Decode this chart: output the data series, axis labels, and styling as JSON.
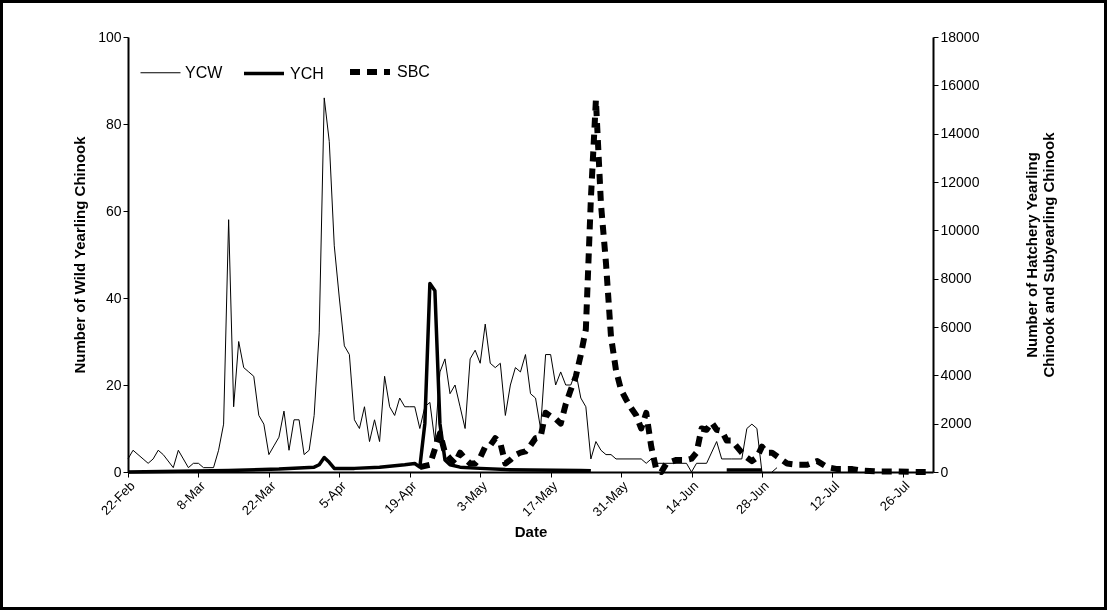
{
  "chart_data": {
    "type": "line",
    "xlabel": "Date",
    "ylabel": "Number of Wild Yearling Chinook",
    "y2label": "Number of Hatchery Yearling Chinook and Subyearling Chinook",
    "xlim": [
      "--02-22",
      "--08-01"
    ],
    "xticks": [
      {
        "value": "--02-22",
        "label": "22-Feb"
      },
      {
        "value": "--03-08",
        "label": "8-Mar"
      },
      {
        "value": "--03-22",
        "label": "22-Mar"
      },
      {
        "value": "--04-05",
        "label": "5-Apr"
      },
      {
        "value": "--04-19",
        "label": "19-Apr"
      },
      {
        "value": "--05-03",
        "label": "3-May"
      },
      {
        "value": "--05-17",
        "label": "17-May"
      },
      {
        "value": "--05-31",
        "label": "31-May"
      },
      {
        "value": "--06-14",
        "label": "14-Jun"
      },
      {
        "value": "--06-28",
        "label": "28-Jun"
      },
      {
        "value": "--07-12",
        "label": "12-Jul"
      },
      {
        "value": "--07-26",
        "label": "26-Jul"
      }
    ],
    "ylim": [
      0,
      100
    ],
    "yticks": [
      0,
      20,
      40,
      60,
      80,
      100
    ],
    "y2lim": [
      0,
      18000
    ],
    "y2ticks": [
      0,
      2000,
      4000,
      6000,
      8000,
      10000,
      12000,
      14000,
      16000,
      18000
    ],
    "legend": "top left",
    "grid": false,
    "marker": "none",
    "series": [
      {
        "name": "YCW",
        "color": "#000000",
        "line_style": "solid",
        "x": [
          "--02-22",
          "--02-23",
          "--02-25",
          "--02-26",
          "--02-27",
          "--02-28",
          "--03-01",
          "--03-03",
          "--03-04",
          "--03-05",
          "--03-06",
          "--03-07",
          "--03-08",
          "--03-09",
          "--03-11",
          "--03-12",
          "--03-13",
          "--03-14",
          "--03-15",
          "--03-16",
          "--03-17",
          "--03-18",
          "--03-19",
          "--03-20",
          "--03-21",
          "--03-22",
          "--03-23",
          "--03-24",
          "--03-25",
          "--03-26",
          "--03-27",
          "--03-28",
          "--03-29",
          "--03-30",
          "--03-31",
          "--04-01",
          "--04-02",
          "--04-03",
          "--04-04",
          "--04-05",
          "--04-06",
          "--04-07",
          "--04-08",
          "--04-09",
          "--04-10",
          "--04-11",
          "--04-12",
          "--04-13",
          "--04-14",
          "--04-15",
          "--04-16",
          "--04-17",
          "--04-18",
          "--04-19",
          "--04-20",
          "--04-21",
          "--04-22",
          "--04-23",
          "--04-24",
          "--04-25",
          "--04-26",
          "--04-27",
          "--04-28",
          "--04-29",
          "--04-30",
          "--05-01",
          "--05-02",
          "--05-03",
          "--05-04",
          "--05-05",
          "--05-06",
          "--05-07",
          "--05-08",
          "--05-09",
          "--05-10",
          "--05-11",
          "--05-12",
          "--05-13",
          "--05-14",
          "--05-15",
          "--05-16",
          "--05-17",
          "--05-18",
          "--05-19",
          "--05-20",
          "--05-21",
          "--05-22",
          "--05-23",
          "--05-24",
          "--05-25",
          "--05-26",
          "--05-27",
          "--05-28",
          "--05-29",
          "--05-30",
          "--06-04",
          "--06-05",
          "--06-06",
          "--06-07",
          "--06-13",
          "--06-14",
          "--06-15",
          "--06-17",
          "--06-19",
          "--06-20",
          "--06-22",
          "--06-24",
          "--06-25",
          "--06-26",
          "--06-27",
          "--06-28",
          "--06-29",
          "--06-30",
          "--07-01"
        ],
        "values": [
          3,
          5,
          3,
          2,
          3,
          5,
          4,
          1,
          5,
          3,
          1,
          2,
          2,
          1,
          1,
          5,
          11,
          58,
          15,
          30,
          24,
          23,
          22,
          13,
          11,
          4,
          6,
          8,
          14,
          5,
          12,
          12,
          4,
          5,
          13,
          32,
          86,
          76,
          52,
          40,
          29,
          27,
          12,
          10,
          15,
          7,
          12,
          7,
          22,
          15,
          13,
          17,
          15,
          15,
          15,
          10,
          15,
          16,
          7,
          23,
          26,
          18,
          20,
          15,
          10,
          26,
          28,
          25,
          34,
          25,
          24,
          25,
          13,
          20,
          24,
          23,
          27,
          18,
          17,
          10,
          27,
          27,
          20,
          23,
          20,
          20,
          23,
          17,
          15,
          3,
          7,
          5,
          4,
          4,
          3,
          3,
          2,
          3,
          2,
          2,
          0,
          2,
          2,
          7,
          3,
          3,
          3,
          10,
          11,
          10,
          0,
          null,
          0,
          1
        ]
      },
      {
        "name": "YCH",
        "color": "#000000",
        "line_style": "solid",
        "axis": "y2",
        "x": [
          "--02-22",
          "--03-04",
          "--03-14",
          "--03-24",
          "--03-31",
          "--04-01",
          "--04-02",
          "--04-03",
          "--04-04",
          "--04-08",
          "--04-13",
          "--04-18",
          "--04-20",
          "--04-21",
          "--04-22",
          "--04-23",
          "--04-24",
          "--04-25",
          "--04-26",
          "--04-27",
          "--04-29",
          "--05-03",
          "--05-08",
          "--05-13",
          "--05-18",
          "--05-23",
          "--05-25",
          "--05-26",
          "--06-21",
          "--06-28"
        ],
        "values": [
          0,
          30,
          60,
          120,
          200,
          300,
          600,
          400,
          150,
          150,
          200,
          300,
          350,
          200,
          2000,
          7800,
          7500,
          2000,
          500,
          300,
          200,
          150,
          100,
          80,
          70,
          60,
          50,
          null,
          80,
          80
        ]
      },
      {
        "name": "SBC",
        "color": "#000000",
        "line_style": "dashed",
        "axis": "y2",
        "x": [
          "--04-21",
          "--04-23",
          "--04-25",
          "--04-26",
          "--04-27",
          "--04-28",
          "--04-29",
          "--04-30",
          "--05-01",
          "--05-02",
          "--05-03",
          "--05-04",
          "--05-05",
          "--05-06",
          "--05-07",
          "--05-08",
          "--05-09",
          "--05-10",
          "--05-11",
          "--05-12",
          "--05-13",
          "--05-14",
          "--05-15",
          "--05-16",
          "--05-17",
          "--05-18",
          "--05-19",
          "--05-20",
          "--05-21",
          "--05-22",
          "--05-23",
          "--05-24",
          "--05-25",
          "--05-26",
          "--05-27",
          "--05-28",
          "--05-29",
          "--05-30",
          "--05-31",
          "--06-01",
          "--06-02",
          "--06-03",
          "--06-04",
          "--06-05",
          "--06-06",
          "--06-07",
          "--06-08",
          "--06-09",
          "--06-11",
          "--06-13",
          "--06-14",
          "--06-15",
          "--06-16",
          "--06-17",
          "--06-18",
          "--06-19",
          "--06-20",
          "--06-21",
          "--06-22",
          "--06-23",
          "--06-24",
          "--06-25",
          "--06-26",
          "--06-27",
          "--06-28",
          "--06-29",
          "--06-30",
          "--07-02",
          "--07-03",
          "--07-05",
          "--07-07",
          "--07-09",
          "--07-11",
          "--07-13",
          "--07-16",
          "--07-18",
          "--07-21",
          "--07-25",
          "--07-28",
          "--07-31"
        ],
        "values": [
          200,
          300,
          1600,
          800,
          550,
          350,
          800,
          550,
          350,
          350,
          600,
          1050,
          1100,
          1400,
          1200,
          350,
          500,
          700,
          800,
          850,
          1100,
          1400,
          1450,
          2450,
          2300,
          2200,
          2000,
          2800,
          3400,
          3950,
          4850,
          5900,
          11300,
          15400,
          11100,
          8650,
          5600,
          4200,
          3400,
          3000,
          2650,
          2350,
          1800,
          2450,
          1050,
          100,
          0,
          350,
          500,
          500,
          550,
          800,
          1800,
          1750,
          2050,
          1750,
          1700,
          1300,
          1300,
          1050,
          800,
          600,
          450,
          600,
          1050,
          800,
          800,
          500,
          350,
          300,
          300,
          450,
          200,
          120,
          120,
          60,
          20,
          20,
          0,
          0
        ]
      }
    ]
  }
}
